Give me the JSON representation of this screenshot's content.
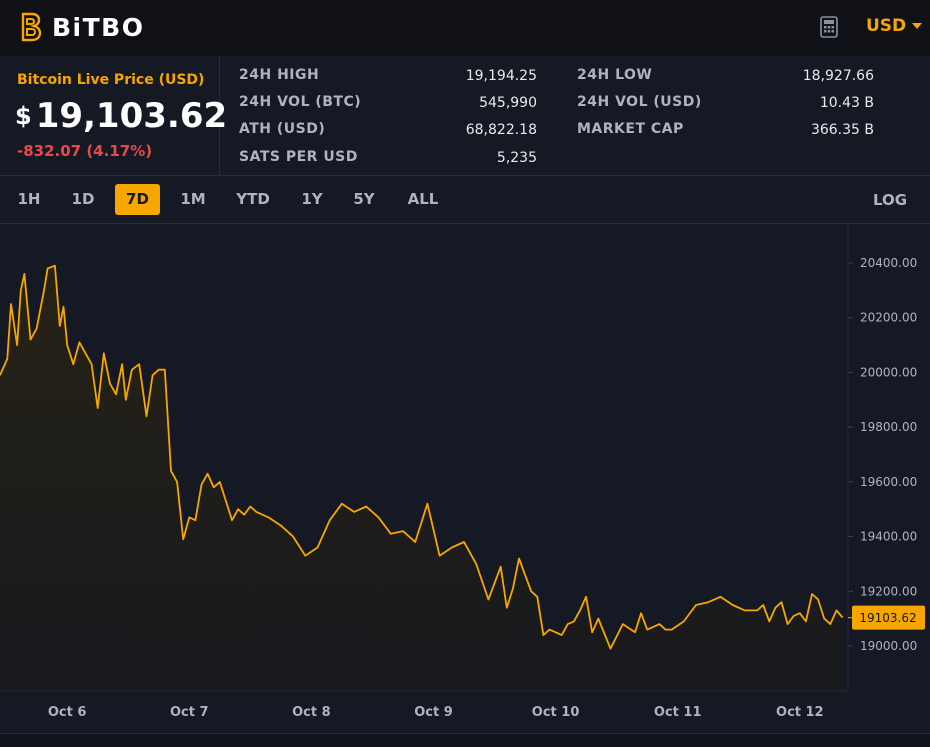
{
  "header": {
    "brand": "BiTBO",
    "currency": "USD"
  },
  "price": {
    "label": "Bitcoin Live Price (USD)",
    "symbol": "$",
    "value": "19,103.62",
    "change": "-832.07 (4.17%)"
  },
  "stats": [
    {
      "label": "24H HIGH",
      "value": "19,194.25"
    },
    {
      "label": "24H VOL (BTC)",
      "value": "545,990"
    },
    {
      "label": "ATH (USD)",
      "value": "68,822.18"
    },
    {
      "label": "SATS PER USD",
      "value": "5,235"
    },
    {
      "label": "24H LOW",
      "value": "18,927.66"
    },
    {
      "label": "24H VOL (USD)",
      "value": "10.43 B"
    },
    {
      "label": "MARKET CAP",
      "value": "366.35 B"
    }
  ],
  "ranges": [
    "1H",
    "1D",
    "7D",
    "1M",
    "YTD",
    "1Y",
    "5Y",
    "ALL"
  ],
  "active_range": "7D",
  "scale_button": "LOG",
  "colors": {
    "accent": "#f7a600",
    "negative": "#e84a4a",
    "background": "#151924"
  },
  "icons": {
    "logo": "bitbo-logo-icon",
    "calculator": "calculator-icon",
    "currency_caret": "caret-down-icon"
  },
  "chart_data": {
    "type": "area",
    "title": "",
    "xlabel": "",
    "ylabel": "",
    "x_ticks": [
      "Oct 6",
      "Oct 7",
      "Oct 8",
      "Oct 9",
      "Oct 10",
      "Oct 11",
      "Oct 12"
    ],
    "y_ticks": [
      19000,
      19200,
      19400,
      19600,
      19800,
      20000,
      20200,
      20400
    ],
    "y_tick_labels": [
      "19000.00",
      "19200.00",
      "19400.00",
      "19600.00",
      "19800.00",
      "20000.00",
      "20200.00",
      "20400.00"
    ],
    "ylim": [
      18840,
      20530
    ],
    "xlim": [
      0,
      6.92
    ],
    "current_price_label": "19103.62",
    "current_price": 19103.62,
    "grid": false,
    "series": [
      {
        "x": [
          0.0,
          0.06,
          0.09,
          0.14,
          0.17,
          0.2,
          0.25,
          0.3,
          0.36,
          0.39,
          0.45,
          0.49,
          0.52,
          0.55,
          0.6,
          0.65,
          0.7,
          0.75,
          0.8,
          0.85,
          0.9,
          0.95,
          1.0,
          1.03,
          1.08,
          1.14,
          1.2,
          1.25,
          1.3,
          1.35,
          1.4,
          1.45,
          1.5,
          1.55,
          1.6,
          1.65,
          1.7,
          1.75,
          1.8,
          1.85,
          1.9,
          1.95,
          2.0,
          2.05,
          2.1,
          2.2,
          2.3,
          2.4,
          2.5,
          2.6,
          2.7,
          2.8,
          2.9,
          3.0,
          3.1,
          3.2,
          3.3,
          3.4,
          3.5,
          3.6,
          3.7,
          3.8,
          3.9,
          4.0,
          4.1,
          4.15,
          4.2,
          4.25,
          4.3,
          4.35,
          4.4,
          4.45,
          4.5,
          4.55,
          4.6,
          4.65,
          4.7,
          4.75,
          4.8,
          4.85,
          4.9,
          5.0,
          5.1,
          5.2,
          5.25,
          5.3,
          5.35,
          5.4,
          5.45,
          5.5,
          5.6,
          5.7,
          5.8,
          5.9,
          6.0,
          6.1,
          6.2,
          6.25,
          6.3,
          6.35,
          6.4,
          6.45,
          6.5,
          6.55,
          6.6,
          6.65,
          6.7,
          6.75,
          6.8,
          6.85,
          6.9
        ],
        "y": [
          19990,
          20050,
          20250,
          20100,
          20300,
          20360,
          20120,
          20160,
          20300,
          20380,
          20390,
          20170,
          20240,
          20100,
          20030,
          20110,
          20070,
          20030,
          19870,
          20070,
          19960,
          19920,
          20030,
          19900,
          20010,
          20030,
          19840,
          19990,
          20010,
          20010,
          19640,
          19600,
          19390,
          19470,
          19460,
          19590,
          19630,
          19580,
          19600,
          19530,
          19460,
          19500,
          19480,
          19510,
          19490,
          19470,
          19440,
          19400,
          19330,
          19360,
          19460,
          19520,
          19490,
          19510,
          19470,
          19410,
          19420,
          19380,
          19520,
          19330,
          19360,
          19380,
          19300,
          19170,
          19290,
          19140,
          19210,
          19320,
          19260,
          19200,
          19180,
          19040,
          19060,
          19050,
          19040,
          19080,
          19090,
          19130,
          19180,
          19050,
          19100,
          18990,
          19080,
          19050,
          19120,
          19060,
          19070,
          19080,
          19060,
          19060,
          19090,
          19150,
          19160,
          19180,
          19150,
          19130,
          19130,
          19150,
          19090,
          19140,
          19160,
          19080,
          19110,
          19120,
          19090,
          19190,
          19170,
          19100,
          19080,
          19130,
          19104
        ]
      }
    ]
  }
}
